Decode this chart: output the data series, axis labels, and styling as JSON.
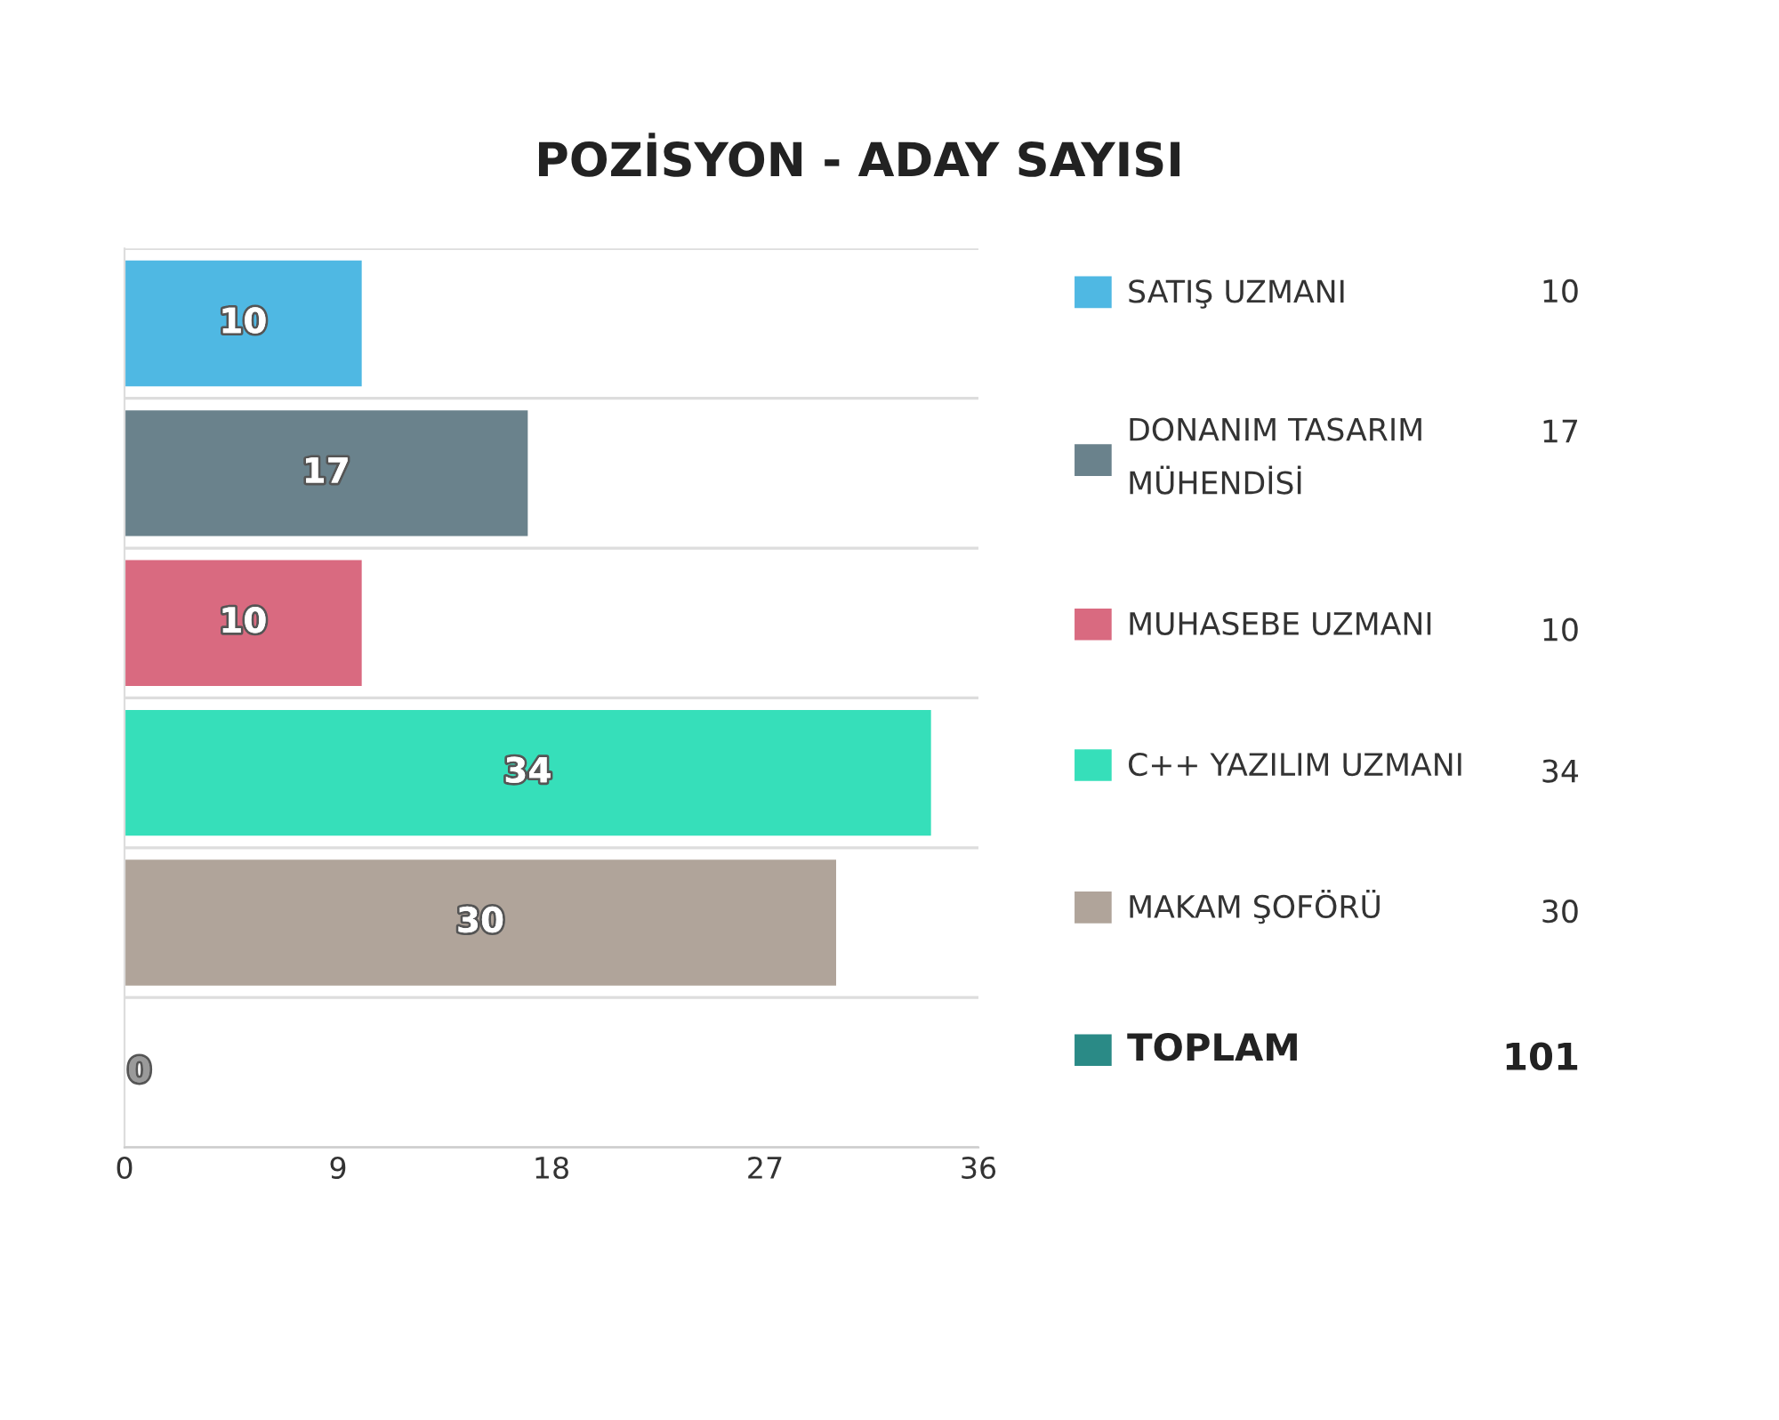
{
  "chart_data": {
    "type": "bar",
    "orientation": "horizontal",
    "title": "POZİSYON - ADAY SAYISI",
    "categories": [
      null,
      null,
      null,
      null,
      null,
      null
    ],
    "series": [
      {
        "name": "SATIŞ UZMANI",
        "color": "#4fb8e3",
        "values": [
          10,
          null,
          null,
          null,
          null,
          null
        ]
      },
      {
        "name": "DONANIM TASARIM\nMÜHENDİSİ",
        "color": "#6a828c",
        "values": [
          null,
          17,
          null,
          null,
          null,
          null
        ]
      },
      {
        "name": "MUHASEBE UZMANI",
        "color": "#d96a80",
        "values": [
          null,
          null,
          10,
          null,
          null,
          null
        ]
      },
      {
        "name": "C++ YAZILIM UZMANI",
        "color": "#36dfba",
        "values": [
          null,
          null,
          null,
          34,
          null,
          null
        ]
      },
      {
        "name": "MAKAM ŞOFÖRÜ",
        "color": "#b0a49a",
        "values": [
          null,
          null,
          null,
          null,
          30,
          null
        ]
      },
      {
        "name": "TOPLAM",
        "color": "#2a8a86",
        "values": [
          null,
          null,
          null,
          null,
          null,
          0
        ]
      }
    ],
    "xlim": [
      0,
      36
    ],
    "xticks": [
      0,
      9,
      18,
      27,
      36
    ],
    "data_labels": true,
    "grid": "y",
    "legend": "right",
    "tick_labels": "x",
    "annotations": [
      "10",
      "17",
      "10",
      "34",
      "30",
      "101"
    ]
  }
}
